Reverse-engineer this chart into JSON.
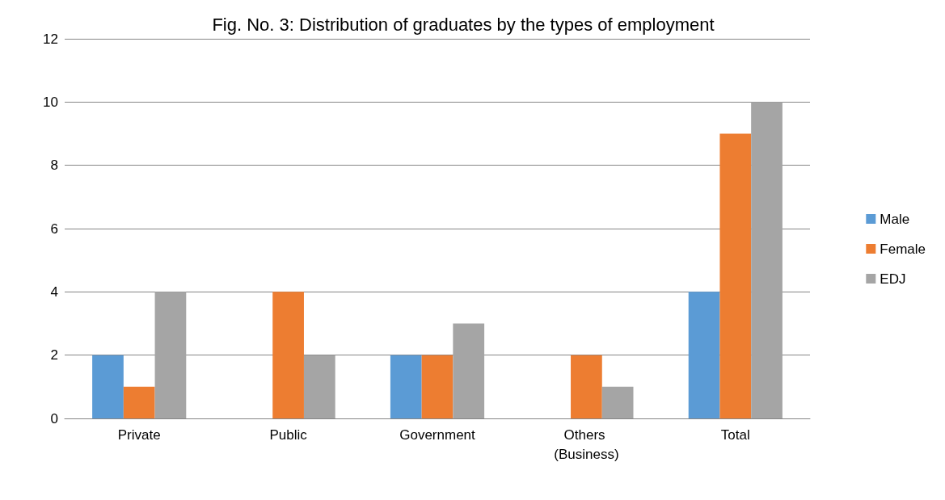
{
  "chart_data": {
    "type": "bar",
    "title": "Fig. No. 3: Distribution of graduates by the types of employment",
    "categories": [
      "Private",
      "Public",
      "Government",
      "Others (Business)",
      "Total"
    ],
    "series": [
      {
        "name": "Male",
        "color": "#5b9bd5",
        "values": [
          2,
          0,
          2,
          0,
          4
        ]
      },
      {
        "name": "Female",
        "color": "#ed7d31",
        "values": [
          1,
          4,
          2,
          2,
          9
        ]
      },
      {
        "name": "EDJ",
        "color": "#a5a5a5",
        "values": [
          4,
          2,
          3,
          1,
          10
        ]
      }
    ],
    "ylim": [
      0,
      12
    ],
    "yticks": [
      0,
      2,
      4,
      6,
      8,
      10,
      12
    ],
    "grid": "y",
    "legend": "right"
  }
}
